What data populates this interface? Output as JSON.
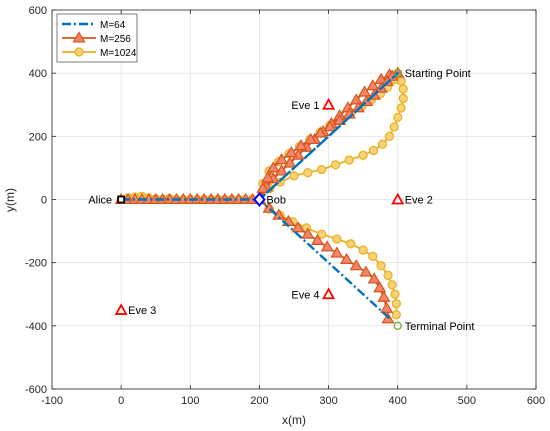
{
  "chart_data": {
    "type": "line",
    "xlabel": "x(m)",
    "ylabel": "y(m)",
    "xlim": [
      -100,
      600
    ],
    "ylim": [
      -600,
      600
    ],
    "xticks": [
      -100,
      0,
      100,
      200,
      300,
      400,
      500,
      600
    ],
    "yticks": [
      -600,
      -400,
      -200,
      0,
      200,
      400,
      600
    ],
    "grid": true,
    "legend_position": "top-left",
    "series": [
      {
        "name": "M=64",
        "color": "#0072BD",
        "style": "dash-dot",
        "marker": "none",
        "points": [
          [
            0,
            0
          ],
          [
            200,
            0
          ],
          [
            400,
            400
          ],
          [
            200,
            0
          ],
          [
            390,
            -380
          ]
        ]
      },
      {
        "name": "M=256",
        "color": "#D95319",
        "style": "solid",
        "marker": "triangle",
        "points": [
          [
            0,
            0
          ],
          [
            10,
            0
          ],
          [
            20,
            0
          ],
          [
            30,
            0
          ],
          [
            40,
            0
          ],
          [
            50,
            0
          ],
          [
            60,
            0
          ],
          [
            70,
            0
          ],
          [
            80,
            0
          ],
          [
            90,
            0
          ],
          [
            100,
            0
          ],
          [
            110,
            0
          ],
          [
            120,
            0
          ],
          [
            130,
            0
          ],
          [
            140,
            0
          ],
          [
            150,
            0
          ],
          [
            160,
            0
          ],
          [
            170,
            0
          ],
          [
            180,
            0
          ],
          [
            190,
            0
          ],
          [
            200,
            0
          ],
          [
            210,
            40
          ],
          [
            220,
            65
          ],
          [
            232,
            90
          ],
          [
            244,
            115
          ],
          [
            256,
            140
          ],
          [
            268,
            165
          ],
          [
            280,
            190
          ],
          [
            292,
            215
          ],
          [
            304,
            240
          ],
          [
            316,
            265
          ],
          [
            328,
            290
          ],
          [
            340,
            315
          ],
          [
            352,
            340
          ],
          [
            364,
            360
          ],
          [
            376,
            380
          ],
          [
            388,
            395
          ],
          [
            400,
            400
          ],
          [
            392,
            390
          ],
          [
            385,
            373
          ],
          [
            376,
            352
          ],
          [
            366,
            330
          ],
          [
            355,
            310
          ],
          [
            343,
            290
          ],
          [
            330,
            270
          ],
          [
            316,
            250
          ],
          [
            302,
            230
          ],
          [
            288,
            210
          ],
          [
            274,
            190
          ],
          [
            260,
            170
          ],
          [
            246,
            148
          ],
          [
            232,
            126
          ],
          [
            220,
            100
          ],
          [
            212,
            68
          ],
          [
            205,
            35
          ],
          [
            200,
            0
          ],
          [
            214,
            -28
          ],
          [
            228,
            -50
          ],
          [
            242,
            -70
          ],
          [
            256,
            -90
          ],
          [
            270,
            -110
          ],
          [
            284,
            -130
          ],
          [
            298,
            -150
          ],
          [
            312,
            -170
          ],
          [
            326,
            -190
          ],
          [
            340,
            -210
          ],
          [
            354,
            -230
          ],
          [
            366,
            -252
          ],
          [
            374,
            -280
          ],
          [
            380,
            -310
          ],
          [
            384,
            -345
          ],
          [
            386,
            -378
          ]
        ]
      },
      {
        "name": "M=1024",
        "color": "#EDB120",
        "style": "solid",
        "marker": "circle",
        "points": [
          [
            0,
            0
          ],
          [
            10,
            5
          ],
          [
            20,
            8
          ],
          [
            30,
            10
          ],
          [
            40,
            5
          ],
          [
            50,
            2
          ],
          [
            60,
            0
          ],
          [
            70,
            3
          ],
          [
            80,
            0
          ],
          [
            90,
            0
          ],
          [
            100,
            0
          ],
          [
            110,
            0
          ],
          [
            120,
            0
          ],
          [
            130,
            0
          ],
          [
            140,
            0
          ],
          [
            150,
            0
          ],
          [
            160,
            0
          ],
          [
            170,
            0
          ],
          [
            180,
            0
          ],
          [
            190,
            0
          ],
          [
            200,
            0
          ],
          [
            215,
            35
          ],
          [
            230,
            55
          ],
          [
            250,
            75
          ],
          [
            270,
            85
          ],
          [
            290,
            95
          ],
          [
            310,
            110
          ],
          [
            330,
            125
          ],
          [
            350,
            140
          ],
          [
            365,
            155
          ],
          [
            378,
            175
          ],
          [
            388,
            200
          ],
          [
            395,
            230
          ],
          [
            400,
            260
          ],
          [
            405,
            290
          ],
          [
            408,
            320
          ],
          [
            408,
            350
          ],
          [
            405,
            375
          ],
          [
            400,
            400
          ],
          [
            395,
            380
          ],
          [
            385,
            355
          ],
          [
            375,
            335
          ],
          [
            362,
            315
          ],
          [
            348,
            295
          ],
          [
            333,
            275
          ],
          [
            318,
            255
          ],
          [
            302,
            235
          ],
          [
            288,
            212
          ],
          [
            273,
            190
          ],
          [
            258,
            168
          ],
          [
            243,
            145
          ],
          [
            228,
            120
          ],
          [
            214,
            90
          ],
          [
            205,
            50
          ],
          [
            200,
            0
          ],
          [
            214,
            -30
          ],
          [
            230,
            -50
          ],
          [
            248,
            -70
          ],
          [
            268,
            -90
          ],
          [
            290,
            -110
          ],
          [
            312,
            -125
          ],
          [
            332,
            -140
          ],
          [
            350,
            -160
          ],
          [
            364,
            -180
          ],
          [
            376,
            -210
          ],
          [
            386,
            -240
          ],
          [
            392,
            -270
          ],
          [
            396,
            -300
          ],
          [
            398,
            -330
          ],
          [
            398,
            -365
          ]
        ]
      }
    ],
    "points_of_interest": [
      {
        "label": "Alice",
        "x": 0,
        "y": 0,
        "marker": "square",
        "color": "#000000",
        "label_side": "left"
      },
      {
        "label": "Bob",
        "x": 200,
        "y": 0,
        "marker": "diamond",
        "color": "#0000FF",
        "label_side": "right"
      },
      {
        "label": "Eve 1",
        "x": 300,
        "y": 300,
        "marker": "triangle-open",
        "color": "#FF0000",
        "label_side": "left"
      },
      {
        "label": "Eve 2",
        "x": 400,
        "y": 0,
        "marker": "triangle-open",
        "color": "#FF0000",
        "label_side": "right"
      },
      {
        "label": "Eve 3",
        "x": 0,
        "y": -350,
        "marker": "triangle-open",
        "color": "#FF0000",
        "label_side": "right"
      },
      {
        "label": "Eve 4",
        "x": 300,
        "y": -300,
        "marker": "triangle-open",
        "color": "#FF0000",
        "label_side": "left"
      },
      {
        "label": "Starting Point",
        "x": 400,
        "y": 400,
        "marker": "circle-open",
        "color": "#77AC30",
        "label_side": "right"
      },
      {
        "label": "Terminal Point",
        "x": 400,
        "y": -400,
        "marker": "circle-open",
        "color": "#77AC30",
        "label_side": "right"
      }
    ]
  }
}
